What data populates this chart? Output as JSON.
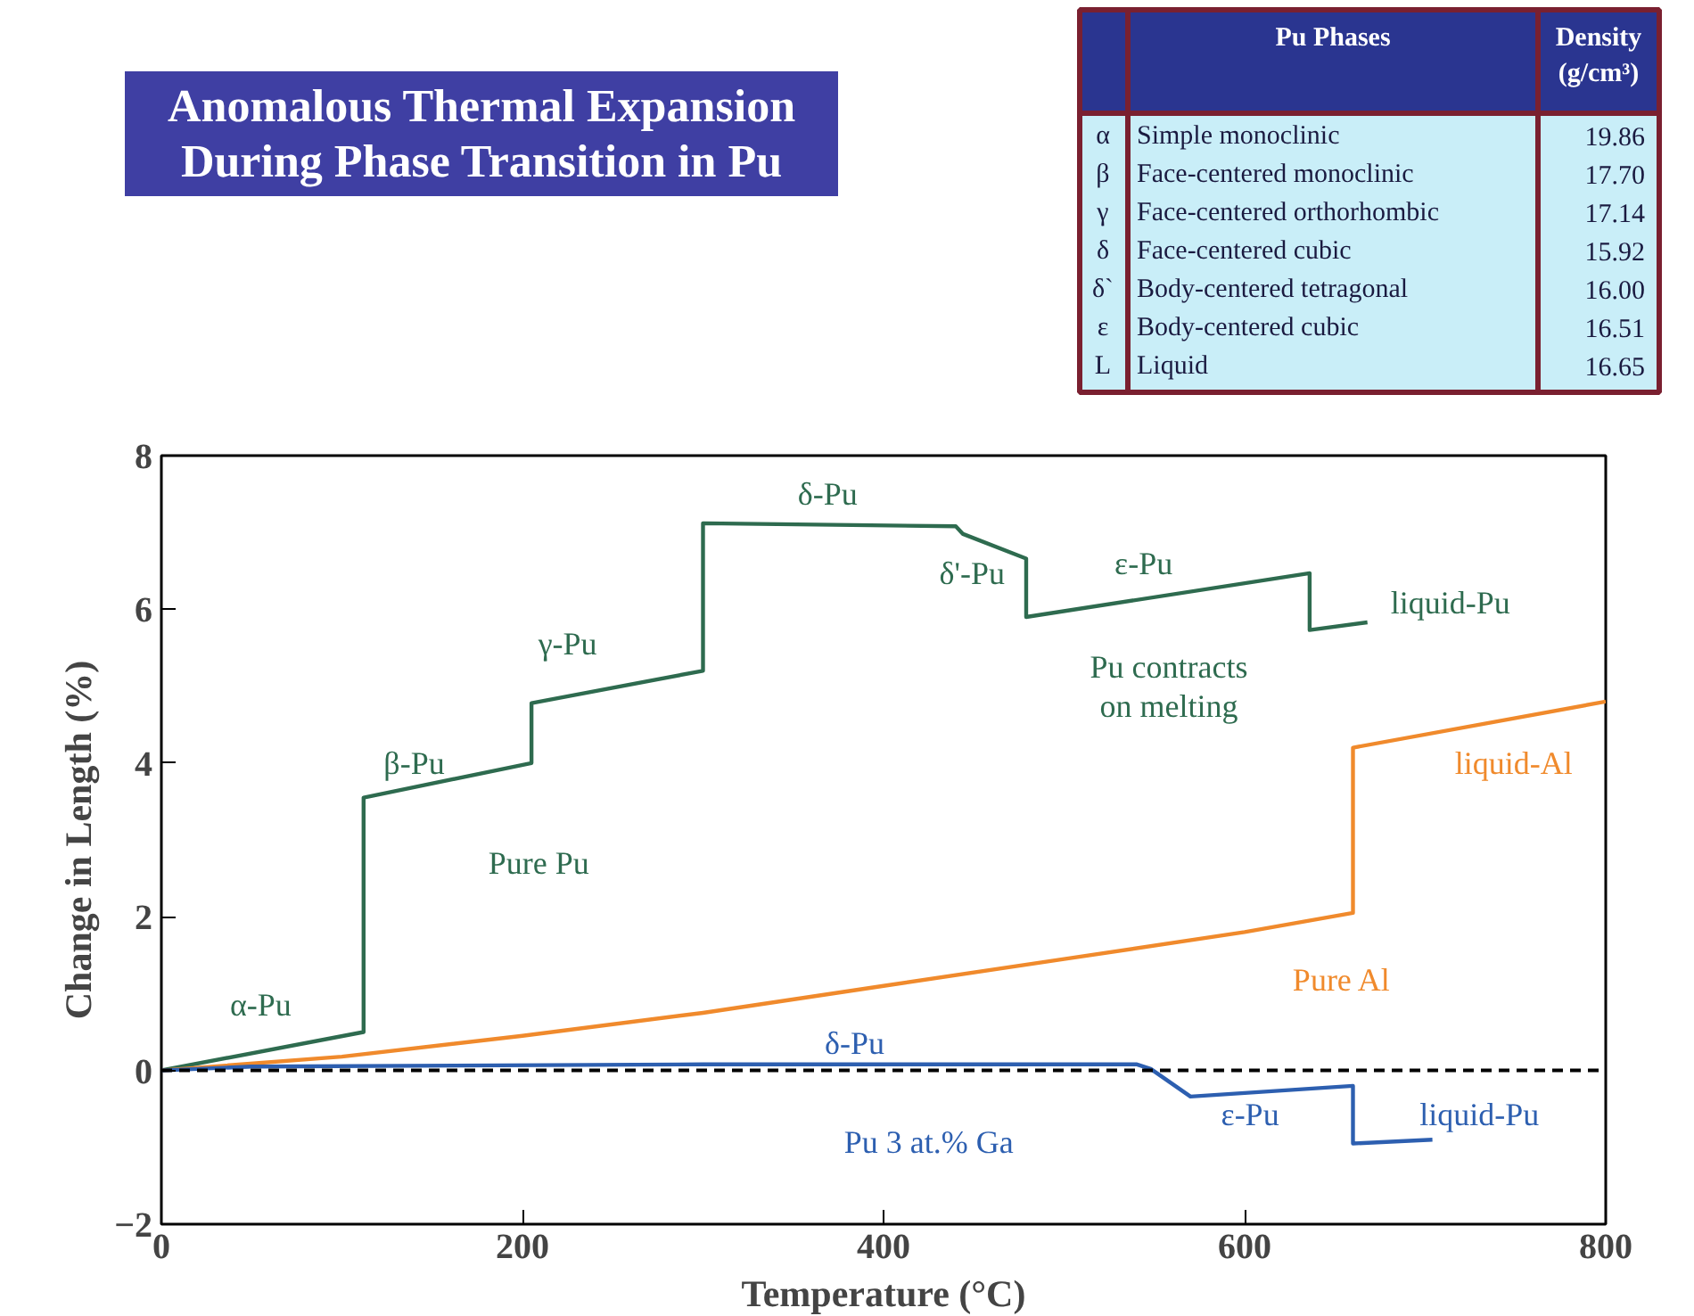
{
  "chart_data": [
    {
      "type": "line",
      "title": "Anomalous Thermal Expansion During Phase Transition in Pu",
      "xlabel": "Temperature (°C)",
      "ylabel": "Change in Length (%)",
      "xlim": [
        0,
        800
      ],
      "ylim": [
        -2,
        8
      ],
      "xticks": [
        0,
        200,
        400,
        600,
        800
      ],
      "yticks": [
        -2,
        0,
        2,
        4,
        6,
        8
      ],
      "grid": false,
      "marker": "none",
      "line_style": "solid",
      "series": [
        {
          "color": "#2e6b4f",
          "x": [
            0,
            112,
            112,
            205,
            205,
            300,
            300,
            440,
            444,
            479,
            479,
            636,
            636,
            668
          ],
          "values": [
            0,
            0.5,
            3.55,
            4.0,
            4.78,
            5.2,
            7.12,
            7.08,
            6.98,
            6.66,
            5.9,
            6.47,
            5.73,
            5.83
          ]
        },
        {
          "color": "#f08a2c",
          "x": [
            0,
            100,
            200,
            300,
            400,
            500,
            600,
            660,
            660,
            800
          ],
          "values": [
            0,
            0.18,
            0.45,
            0.75,
            1.1,
            1.45,
            1.8,
            2.05,
            4.2,
            4.8
          ]
        },
        {
          "color": "#2d5fb0",
          "x": [
            0,
            50,
            300,
            540,
            548,
            570,
            660,
            660,
            704
          ],
          "values": [
            0,
            0.05,
            0.08,
            0.08,
            0.02,
            -0.34,
            -0.2,
            -0.95,
            -0.9
          ]
        }
      ],
      "ref_lines": [
        {
          "axis": "y",
          "value": 0,
          "color": "#000000",
          "line_style": "dashed"
        }
      ],
      "annotations": [
        "α-Pu",
        "β-Pu",
        "γ-Pu",
        "δ-Pu",
        "δ'-Pu",
        "ε-Pu",
        "liquid-Pu",
        "Pu contracts\non melting",
        "Pure Pu",
        "Pure Al",
        "liquid-Al",
        "δ-Pu",
        "Pu 3 at.% Ga",
        "ε-Pu",
        "liquid-Pu"
      ]
    },
    {
      "type": "other",
      "annotations": [
        "Pu Phases",
        "Density (g/cm³)",
        "α",
        "Simple monoclinic",
        "19.86",
        "β",
        "Face-centered monoclinic",
        "17.70",
        "γ",
        "Face-centered orthorhombic",
        "17.14",
        "δ",
        "Face-centered cubic",
        "15.92",
        "δ`",
        "Body-centered tetragonal",
        "16.00",
        "ε",
        "Body-centered cubic",
        "16.51",
        "L",
        "Liquid",
        "16.65"
      ]
    }
  ]
}
